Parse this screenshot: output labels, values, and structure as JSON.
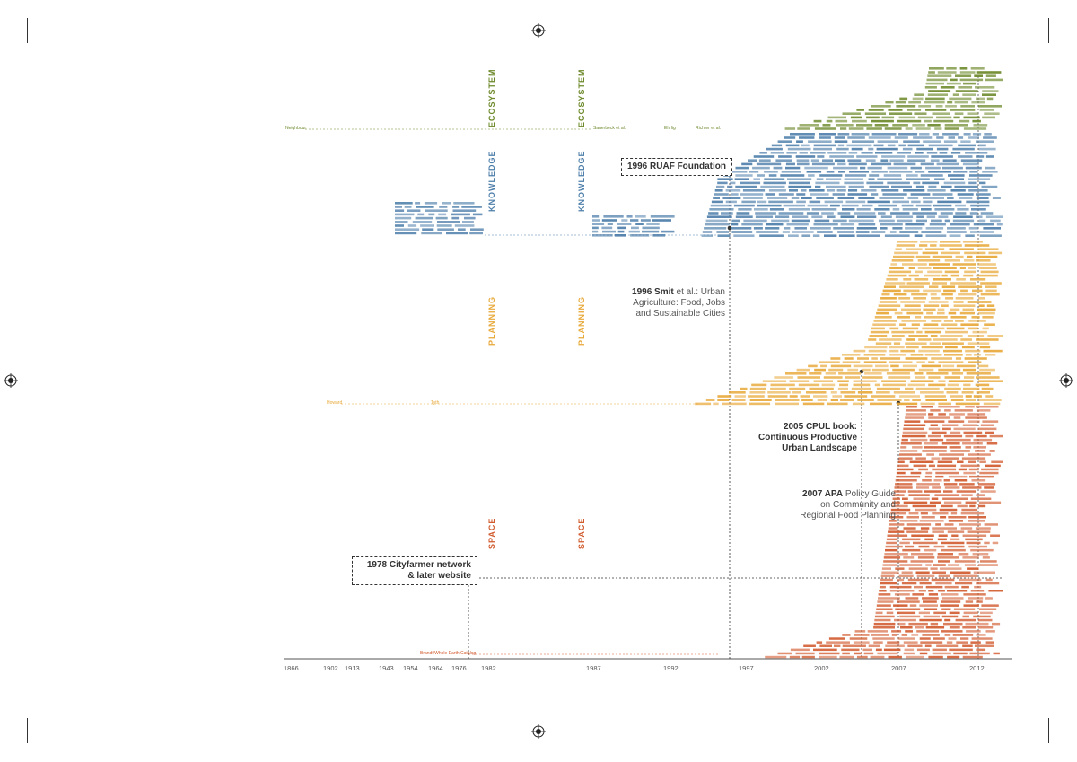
{
  "categories": [
    {
      "label": "ECOSYSTEM",
      "color": "#6e8a2c"
    },
    {
      "label": "KNOWLEDGE",
      "color": "#4f7fab"
    },
    {
      "label": "PLANNING",
      "color": "#e8a93a"
    },
    {
      "label": "SPACE",
      "color": "#d25b2f"
    }
  ],
  "axis": {
    "years": [
      "1866",
      "1902",
      "1913",
      "1943",
      "1954",
      "1964",
      "1976",
      "1982",
      "1987",
      "1992",
      "1997",
      "2002",
      "2007",
      "2012"
    ]
  },
  "callouts": {
    "ruaf": "1996 RUAF Foundation",
    "smit_bold": "1996 Smit",
    "smit_rest": " et al.: Urban",
    "smit_line2": "Agriculture: Food, Jobs",
    "smit_line3": "and Sustainable Cities",
    "cpul_line1": "2005 CPUL book:",
    "cpul_line2": "Continuous Productive",
    "cpul_line3": "Urban Landscape",
    "apa_bold": "2007 APA",
    "apa_rest": " Policy Guide",
    "apa_line2": "on Community and",
    "apa_line3": "Regional Food Planning",
    "cityfarmer_line1": "1978 Cityfarmer network",
    "cityfarmer_line2": "& later website"
  },
  "early_labels": {
    "neighbour": "Neighbour",
    "howard": "Howard",
    "geddes": "Sauerbeck et al.",
    "brandt": "Brandt/Whole Earth Catalog",
    "ehrlig": "Ehrlig",
    "richter": "Richter et al.",
    "tyth": "Tyth"
  }
}
